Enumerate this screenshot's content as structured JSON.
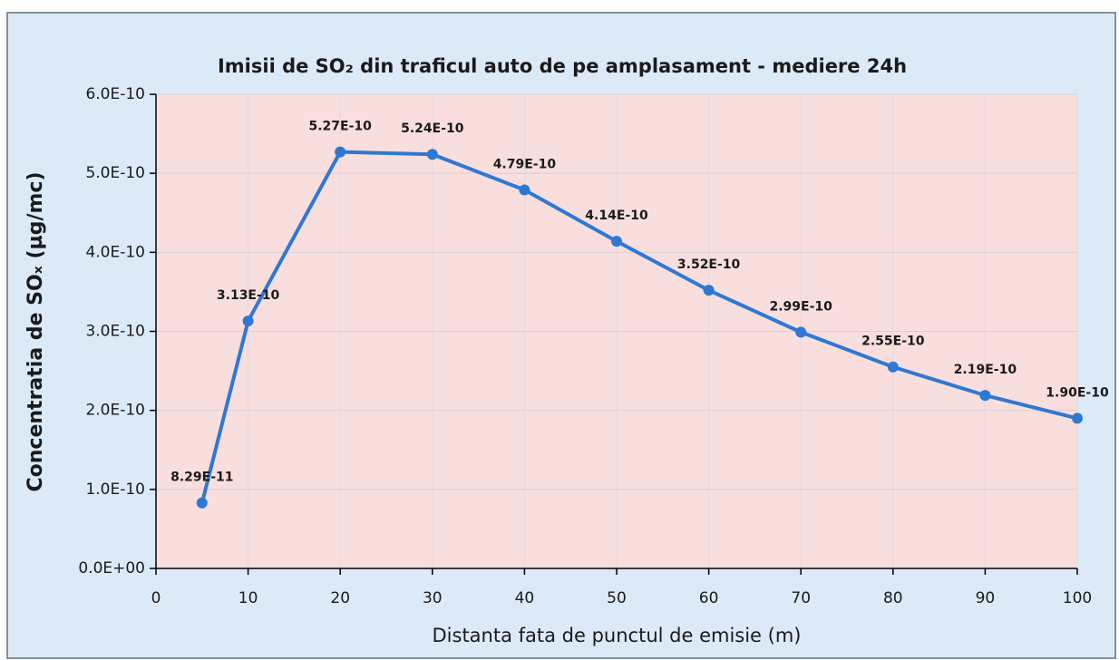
{
  "chart_data": {
    "type": "line",
    "title": "Imisii de SO₂ din traficul auto de pe amplasament - mediere 24h",
    "xlabel": "Distanta fata de punctul de emisie (m)",
    "ylabel": "Concentratia de SOₓ (µg/mc)",
    "x": [
      5,
      10,
      20,
      30,
      40,
      50,
      60,
      70,
      80,
      90,
      100
    ],
    "values": [
      8.29e-11,
      3.13e-10,
      5.27e-10,
      5.24e-10,
      4.79e-10,
      4.14e-10,
      3.52e-10,
      2.99e-10,
      2.55e-10,
      2.19e-10,
      1.9e-10
    ],
    "value_labels": [
      "8.29E-11",
      "3.13E-10",
      "5.27E-10",
      "5.24E-10",
      "4.79E-10",
      "4.14E-10",
      "3.52E-10",
      "2.99E-10",
      "2.55E-10",
      "2.19E-10",
      "1.90E-10"
    ],
    "color": "#2e78d2",
    "xlim": [
      0,
      100
    ],
    "xticks": [
      0,
      10,
      20,
      30,
      40,
      50,
      60,
      70,
      80,
      90,
      100
    ],
    "ylim": [
      0,
      6e-10
    ],
    "yticks": [
      {
        "value": 0,
        "label": "0.0E+00"
      },
      {
        "value": 1e-10,
        "label": "1.0E-10"
      },
      {
        "value": 2e-10,
        "label": "2.0E-10"
      },
      {
        "value": 3e-10,
        "label": "3.0E-10"
      },
      {
        "value": 4e-10,
        "label": "4.0E-10"
      },
      {
        "value": 5e-10,
        "label": "5.0E-10"
      },
      {
        "value": 6e-10,
        "label": "6.0E-10"
      }
    ],
    "grid": true
  }
}
